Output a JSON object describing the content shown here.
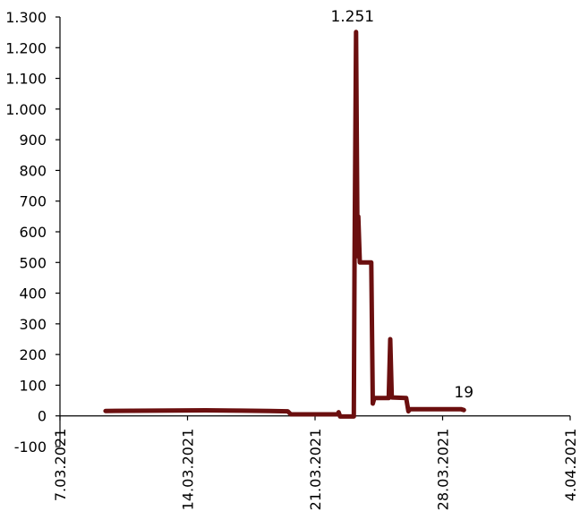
{
  "chart_data": {
    "type": "line",
    "title": "",
    "xlabel": "",
    "ylabel": "",
    "x_axis": {
      "min": "2021-03-07",
      "max": "2021-04-04",
      "ticks": [
        "2021-03-07",
        "2021-03-14",
        "2021-03-21",
        "2021-03-28",
        "2021-04-04"
      ],
      "tick_labels": [
        "7.03.2021",
        "14.03.2021",
        "21.03.2021",
        "28.03.2021",
        "4.04.2021"
      ]
    },
    "y_axis": {
      "min": -100,
      "max": 1300,
      "ticks": [
        -100,
        0,
        100,
        200,
        300,
        400,
        500,
        600,
        700,
        800,
        900,
        1000,
        1100,
        1200,
        1300
      ],
      "tick_labels": [
        "-100",
        "0",
        "100",
        "200",
        "300",
        "400",
        "500",
        "600",
        "700",
        "800",
        "900",
        "1.000",
        "1.100",
        "1.200",
        "1.300"
      ]
    },
    "grid": false,
    "legend": "none",
    "colors": {
      "series": "#6b0f0f",
      "axis": "#000000"
    },
    "series": [
      {
        "points": [
          [
            "2021-03-09 12:00",
            16
          ],
          [
            "2021-03-12 00:00",
            17
          ],
          [
            "2021-03-15 00:00",
            18
          ],
          [
            "2021-03-17 00:00",
            17
          ],
          [
            "2021-03-18 12:00",
            16
          ],
          [
            "2021-03-19 12:00",
            15
          ],
          [
            "2021-03-19 16:00",
            5
          ],
          [
            "2021-03-22 06:00",
            5
          ],
          [
            "2021-03-22 07:00",
            12
          ],
          [
            "2021-03-22 09:00",
            -2
          ],
          [
            "2021-03-23 03:00",
            -2
          ],
          [
            "2021-03-23 04:00",
            500
          ],
          [
            "2021-03-23 06:00",
            1251
          ],
          [
            "2021-03-23 08:00",
            520
          ],
          [
            "2021-03-23 09:00",
            650
          ],
          [
            "2021-03-23 11:00",
            500
          ],
          [
            "2021-03-24 02:00",
            500
          ],
          [
            "2021-03-24 04:00",
            40
          ],
          [
            "2021-03-24 06:00",
            58
          ],
          [
            "2021-03-25 01:00",
            58
          ],
          [
            "2021-03-25 03:00",
            250
          ],
          [
            "2021-03-25 05:00",
            60
          ],
          [
            "2021-03-26 00:00",
            58
          ],
          [
            "2021-03-26 03:00",
            15
          ],
          [
            "2021-03-26 05:00",
            22
          ],
          [
            "2021-03-29 00:00",
            22
          ],
          [
            "2021-03-29 04:00",
            19
          ]
        ]
      }
    ],
    "annotations": [
      {
        "text": "1.251",
        "x": "2021-03-23 06:00",
        "y": 1251
      },
      {
        "text": "19",
        "x": "2021-03-29 04:00",
        "y": 19
      }
    ]
  }
}
